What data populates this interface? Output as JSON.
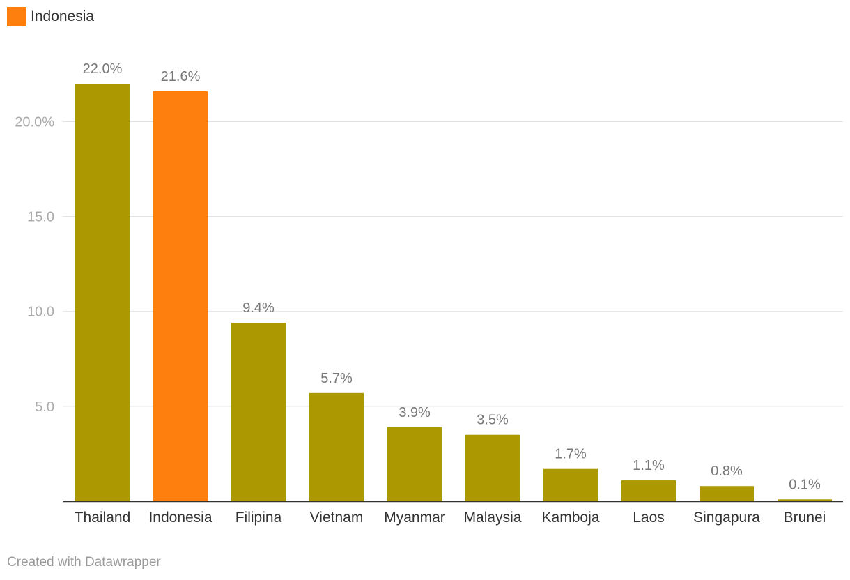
{
  "legend": {
    "label": "Indonesia",
    "color": "#ff7f0e"
  },
  "credit": "Created with Datawrapper",
  "colors": {
    "default_bar": "#ac9800",
    "highlight_bar": "#ff7f0e",
    "gridline": "#e0e0e0",
    "axis": "#333333",
    "tick_label": "#aaaaaa",
    "value_label": "#777777",
    "category_label": "#333333"
  },
  "chart_data": {
    "type": "bar",
    "title": "",
    "xlabel": "",
    "ylabel": "",
    "categories": [
      "Thailand",
      "Indonesia",
      "Filipina",
      "Vietnam",
      "Myanmar",
      "Malaysia",
      "Kamboja",
      "Laos",
      "Singapura",
      "Brunei"
    ],
    "values": [
      22.0,
      21.6,
      9.4,
      5.7,
      3.9,
      3.5,
      1.7,
      1.1,
      0.8,
      0.1
    ],
    "value_labels": [
      "22.0%",
      "21.6%",
      "9.4%",
      "5.7%",
      "3.9%",
      "3.5%",
      "1.7%",
      "1.1%",
      "0.8%",
      "0.1%"
    ],
    "highlighted": [
      "Indonesia"
    ],
    "y_ticks": [
      5,
      10,
      15,
      20
    ],
    "y_tick_labels": [
      "5.0",
      "10.0",
      "15.0",
      "20.0%"
    ],
    "ylim": [
      0,
      22
    ],
    "grid": true,
    "legend_position": "top-left"
  }
}
